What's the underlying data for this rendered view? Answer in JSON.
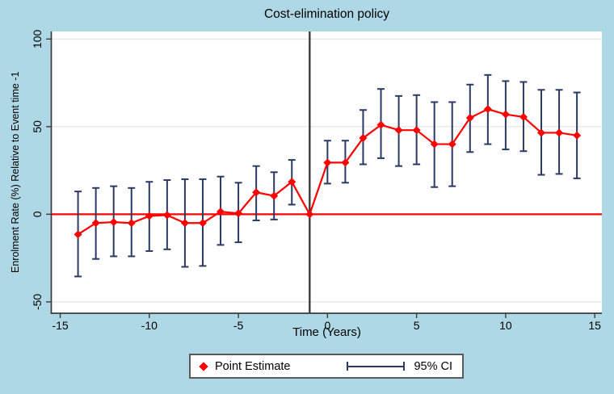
{
  "figure": {
    "background_color": "#aed8e6",
    "plot_background_color": "#ffffff",
    "gridline_color": "#e7e7e7",
    "axis_color": "#3a3a3a",
    "event_line_color": "#3d3d3d",
    "zero_line_color": "#ff0000"
  },
  "chart_data": {
    "type": "line",
    "title": "Cost-elimination policy",
    "xlabel": "Time (Years)",
    "ylabel": "Enrolment Rate (%) Relative to Event time -1",
    "xlim": [
      -15.5,
      15.4
    ],
    "ylim": [
      -56.5,
      104.3
    ],
    "x_ticks": [
      -15,
      -10,
      -5,
      0,
      5,
      10,
      15
    ],
    "y_ticks": [
      100,
      50,
      0,
      -50
    ],
    "grid": true,
    "legend_position": "bottom-center",
    "reference_lines": {
      "vertical_x": -1,
      "horizontal_y": 0
    },
    "series": [
      {
        "name": "Point Estimate",
        "marker": "diamond",
        "color": "#ff0000",
        "x": [
          -14,
          -13,
          -12,
          -11,
          -10,
          -9,
          -8,
          -7,
          -6,
          -5,
          -4,
          -3,
          -2,
          -1,
          0,
          1,
          2,
          3,
          4,
          5,
          6,
          7,
          8,
          9,
          10,
          11,
          12,
          13,
          14
        ],
        "y": [
          -11.5,
          -5,
          -4.5,
          -5,
          -1,
          -0.5,
          -5,
          -5,
          1.5,
          0.5,
          12.5,
          10.5,
          18.5,
          0,
          29.5,
          29.5,
          43.5,
          51,
          48,
          48,
          40,
          40,
          55,
          60,
          57,
          55.5,
          46.5,
          46.5,
          45
        ]
      },
      {
        "name": "95% CI",
        "type": "errorbar",
        "color": "#2b3a64",
        "x": [
          -14,
          -13,
          -12,
          -11,
          -10,
          -9,
          -8,
          -7,
          -6,
          -5,
          -4,
          -3,
          -2,
          -1,
          0,
          1,
          2,
          3,
          4,
          5,
          6,
          7,
          8,
          9,
          10,
          11,
          12,
          13,
          14
        ],
        "low": [
          -35.5,
          -25.5,
          -24,
          -24,
          -21,
          -20,
          -30,
          -29.5,
          -17.5,
          -16,
          -3.5,
          -3,
          5.5,
          null,
          17.5,
          18,
          28.5,
          32,
          27.5,
          28.5,
          15.5,
          16,
          35.5,
          40,
          37,
          36,
          22.5,
          23,
          20.5
        ],
        "high": [
          13,
          15,
          16,
          15,
          18.5,
          19.5,
          20,
          20,
          21.5,
          18,
          27.5,
          24,
          31,
          null,
          42,
          42,
          59.5,
          71.5,
          67.5,
          68,
          64,
          64,
          74,
          79.5,
          76,
          75.5,
          71,
          71,
          69.5
        ]
      }
    ]
  }
}
